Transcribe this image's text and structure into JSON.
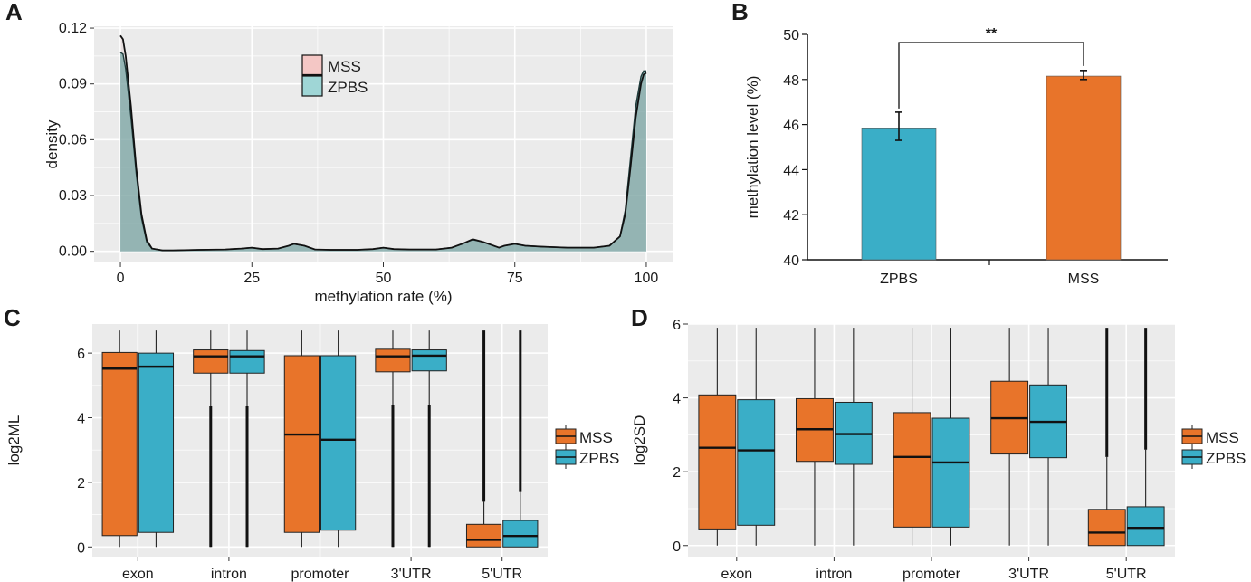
{
  "colors": {
    "mss": "#e8742a",
    "zpbs": "#3aaec7",
    "panel_bg": "#ebebeb",
    "grid": "#ffffff",
    "density_fill": "#97c2c2",
    "mss_legend_fill": "#f4c7c5",
    "zpbs_legend_fill": "#9fd6d6"
  },
  "chart_data": [
    {
      "panel": "A",
      "type": "area",
      "xlabel": "methylation rate (%)",
      "ylabel": "density",
      "xlim": [
        -5,
        105
      ],
      "ylim": [
        -0.006,
        0.121
      ],
      "x_ticks": [
        0,
        25,
        50,
        75,
        100
      ],
      "x_tick_labels": [
        "0",
        "25",
        "50",
        "75",
        "100"
      ],
      "y_ticks": [
        0,
        0.03,
        0.06,
        0.09,
        0.12
      ],
      "y_tick_labels": [
        "0.00",
        "0.03",
        "0.06",
        "0.09",
        "0.12"
      ],
      "legend": [
        "MSS",
        "ZPBS"
      ],
      "legend_position": "top-center",
      "series": [
        {
          "name": "MSS",
          "x": [
            0,
            0.5,
            1,
            2,
            3,
            4,
            5,
            6,
            8,
            10,
            15,
            20,
            23,
            25,
            27,
            30,
            32,
            33,
            35,
            37,
            40,
            45,
            48,
            50,
            52,
            55,
            60,
            63,
            65,
            67,
            69,
            72,
            73,
            75,
            77,
            80,
            85,
            90,
            93,
            95,
            96,
            97,
            98,
            99,
            99.5,
            100
          ],
          "values": [
            0.116,
            0.114,
            0.105,
            0.078,
            0.045,
            0.02,
            0.006,
            0.0015,
            0.0005,
            0.0005,
            0.0008,
            0.001,
            0.0015,
            0.002,
            0.0012,
            0.0015,
            0.003,
            0.004,
            0.003,
            0.001,
            0.0008,
            0.0008,
            0.0012,
            0.002,
            0.0012,
            0.001,
            0.001,
            0.002,
            0.004,
            0.0065,
            0.005,
            0.002,
            0.003,
            0.004,
            0.003,
            0.0025,
            0.002,
            0.002,
            0.003,
            0.008,
            0.02,
            0.045,
            0.072,
            0.09,
            0.095,
            0.096
          ]
        },
        {
          "name": "ZPBS",
          "x": [
            0,
            0.5,
            1,
            2,
            3,
            4,
            5,
            6,
            8,
            10,
            15,
            20,
            23,
            25,
            27,
            30,
            32,
            33,
            35,
            37,
            40,
            45,
            48,
            50,
            52,
            55,
            60,
            63,
            65,
            67,
            69,
            72,
            73,
            75,
            77,
            80,
            85,
            90,
            93,
            95,
            96,
            97,
            98,
            99,
            99.5,
            100
          ],
          "values": [
            0.107,
            0.106,
            0.098,
            0.072,
            0.042,
            0.018,
            0.005,
            0.0015,
            0.0005,
            0.0005,
            0.0008,
            0.001,
            0.0015,
            0.002,
            0.0012,
            0.0015,
            0.003,
            0.004,
            0.003,
            0.001,
            0.0008,
            0.0008,
            0.0012,
            0.002,
            0.0012,
            0.001,
            0.001,
            0.002,
            0.004,
            0.0062,
            0.005,
            0.002,
            0.003,
            0.004,
            0.003,
            0.0025,
            0.002,
            0.002,
            0.003,
            0.008,
            0.022,
            0.05,
            0.078,
            0.094,
            0.097,
            0.097
          ]
        }
      ]
    },
    {
      "panel": "B",
      "type": "bar",
      "ylabel": "methylation level (%)",
      "categories": [
        "ZPBS",
        "MSS"
      ],
      "values": [
        45.85,
        48.15
      ],
      "errors": [
        [
          45.3,
          46.55
        ],
        [
          48.0,
          48.4
        ]
      ],
      "ylim": [
        40,
        50
      ],
      "y_ticks": [
        40,
        42,
        44,
        46,
        48,
        50
      ],
      "significance": "**"
    },
    {
      "panel": "C",
      "type": "box",
      "ylabel": "log2ML",
      "categories": [
        "exon",
        "intron",
        "promoter",
        "3'UTR",
        "5'UTR"
      ],
      "ylim": [
        -0.3,
        6.9
      ],
      "y_ticks": [
        0,
        2,
        4,
        6
      ],
      "legend": [
        "MSS",
        "ZPBS"
      ],
      "series": [
        {
          "name": "MSS",
          "boxes": [
            {
              "min": 0,
              "q1": 0.35,
              "median": 5.52,
              "q3": 6.02,
              "max": 6.7
            },
            {
              "min": 0,
              "q1": 5.38,
              "median": 5.9,
              "q3": 6.1,
              "max": 6.7,
              "outlier_low": 4.35
            },
            {
              "min": 0,
              "q1": 0.45,
              "median": 3.48,
              "q3": 5.92,
              "max": 6.7
            },
            {
              "min": 0,
              "q1": 5.42,
              "median": 5.9,
              "q3": 6.12,
              "max": 6.7,
              "outlier_low": 4.4
            },
            {
              "min": 0,
              "q1": 0.0,
              "median": 0.22,
              "q3": 0.7,
              "max": 1.4,
              "outlier_high": 6.7
            }
          ]
        },
        {
          "name": "ZPBS",
          "boxes": [
            {
              "min": 0,
              "q1": 0.45,
              "median": 5.58,
              "q3": 6.0,
              "max": 6.7
            },
            {
              "min": 0,
              "q1": 5.38,
              "median": 5.9,
              "q3": 6.08,
              "max": 6.7,
              "outlier_low": 4.35
            },
            {
              "min": 0,
              "q1": 0.52,
              "median": 3.32,
              "q3": 5.92,
              "max": 6.7
            },
            {
              "min": 0,
              "q1": 5.45,
              "median": 5.92,
              "q3": 6.1,
              "max": 6.7,
              "outlier_low": 4.4
            },
            {
              "min": 0,
              "q1": 0.0,
              "median": 0.34,
              "q3": 0.82,
              "max": 1.7,
              "outlier_high": 6.7
            }
          ]
        }
      ]
    },
    {
      "panel": "D",
      "type": "box",
      "ylabel": "log2SD",
      "categories": [
        "exon",
        "intron",
        "promoter",
        "3'UTR",
        "5'UTR"
      ],
      "ylim": [
        -0.3,
        6.0
      ],
      "y_ticks": [
        0,
        2,
        4,
        6
      ],
      "legend": [
        "MSS",
        "ZPBS"
      ],
      "series": [
        {
          "name": "MSS",
          "boxes": [
            {
              "min": 0,
              "q1": 0.45,
              "median": 2.65,
              "q3": 4.08,
              "max": 5.9
            },
            {
              "min": 0,
              "q1": 2.28,
              "median": 3.15,
              "q3": 3.98,
              "max": 5.9
            },
            {
              "min": 0,
              "q1": 0.5,
              "median": 2.4,
              "q3": 3.6,
              "max": 5.9
            },
            {
              "min": 0,
              "q1": 2.48,
              "median": 3.45,
              "q3": 4.45,
              "max": 5.9
            },
            {
              "min": 0,
              "q1": 0.0,
              "median": 0.35,
              "q3": 0.98,
              "max": 2.4,
              "outlier_high": 5.9
            }
          ]
        },
        {
          "name": "ZPBS",
          "boxes": [
            {
              "min": 0,
              "q1": 0.55,
              "median": 2.58,
              "q3": 3.95,
              "max": 5.9
            },
            {
              "min": 0,
              "q1": 2.2,
              "median": 3.02,
              "q3": 3.88,
              "max": 5.9
            },
            {
              "min": 0,
              "q1": 0.5,
              "median": 2.25,
              "q3": 3.45,
              "max": 5.9
            },
            {
              "min": 0,
              "q1": 2.38,
              "median": 3.35,
              "q3": 4.35,
              "max": 5.9
            },
            {
              "min": 0,
              "q1": 0.0,
              "median": 0.48,
              "q3": 1.05,
              "max": 2.6,
              "outlier_high": 5.9
            }
          ]
        }
      ]
    }
  ]
}
